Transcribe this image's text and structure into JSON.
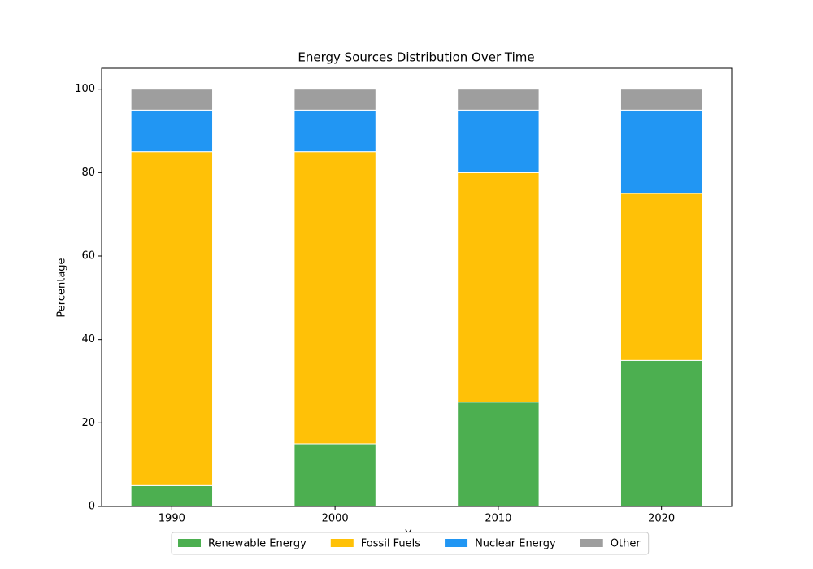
{
  "chart_data": {
    "type": "stacked_bar",
    "title": "Energy Sources Distribution Over Time",
    "x_label": "Year",
    "y_label": "Percentage",
    "categories": [
      "1990",
      "2000",
      "2010",
      "2020"
    ],
    "series": [
      {
        "name": "Renewable Energy",
        "color": "#4caf50",
        "values": [
          5,
          15,
          25,
          35
        ]
      },
      {
        "name": "Fossil Fuels",
        "color": "#ffc107",
        "values": [
          80,
          70,
          55,
          40
        ]
      },
      {
        "name": "Nuclear Energy",
        "color": "#2196f3",
        "values": [
          10,
          10,
          15,
          20
        ]
      },
      {
        "name": "Other",
        "color": "#9e9e9e",
        "values": [
          5,
          5,
          5,
          5
        ]
      }
    ],
    "ylim": [
      0,
      105
    ],
    "yticks": [
      0,
      20,
      40,
      60,
      80,
      100
    ],
    "legend": "bottom"
  }
}
